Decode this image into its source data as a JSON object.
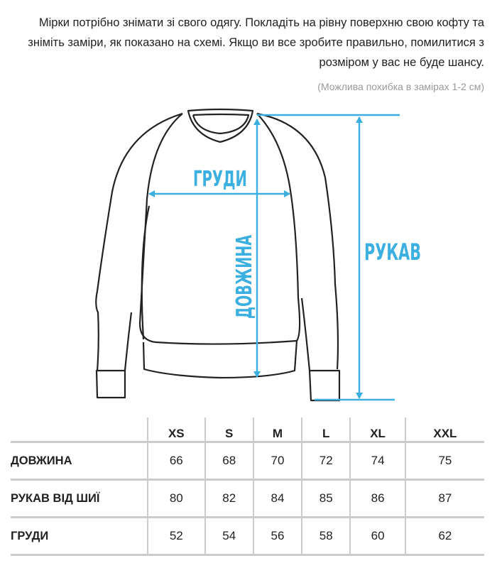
{
  "intro": {
    "text": "Мірки потрібно знімати зі свого одягу. Покладіть на рівну поверхню свою кофту та зніміть заміри, як показано на схемі. Якщо ви все зробите правильно, помилитися з розміром у вас не буде шансу.",
    "note": "(Можлива похибка в замірах 1-2 см)"
  },
  "diagram": {
    "chest_label": "ГРУДИ",
    "length_label": "ДОВЖИНА",
    "sleeve_label": "РУКАВ",
    "accent_color": "#3aafe0",
    "outline_color": "#222222"
  },
  "table": {
    "sizes": [
      "XS",
      "S",
      "M",
      "L",
      "XL",
      "XXL"
    ],
    "rows": [
      {
        "label": "ДОВЖИНА",
        "values": [
          "66",
          "68",
          "70",
          "72",
          "74",
          "75"
        ]
      },
      {
        "label": "РУКАВ ВІД ШИЇ",
        "values": [
          "80",
          "82",
          "84",
          "85",
          "86",
          "87"
        ]
      },
      {
        "label": "ГРУДИ",
        "values": [
          "52",
          "54",
          "56",
          "58",
          "60",
          "62"
        ]
      }
    ]
  }
}
